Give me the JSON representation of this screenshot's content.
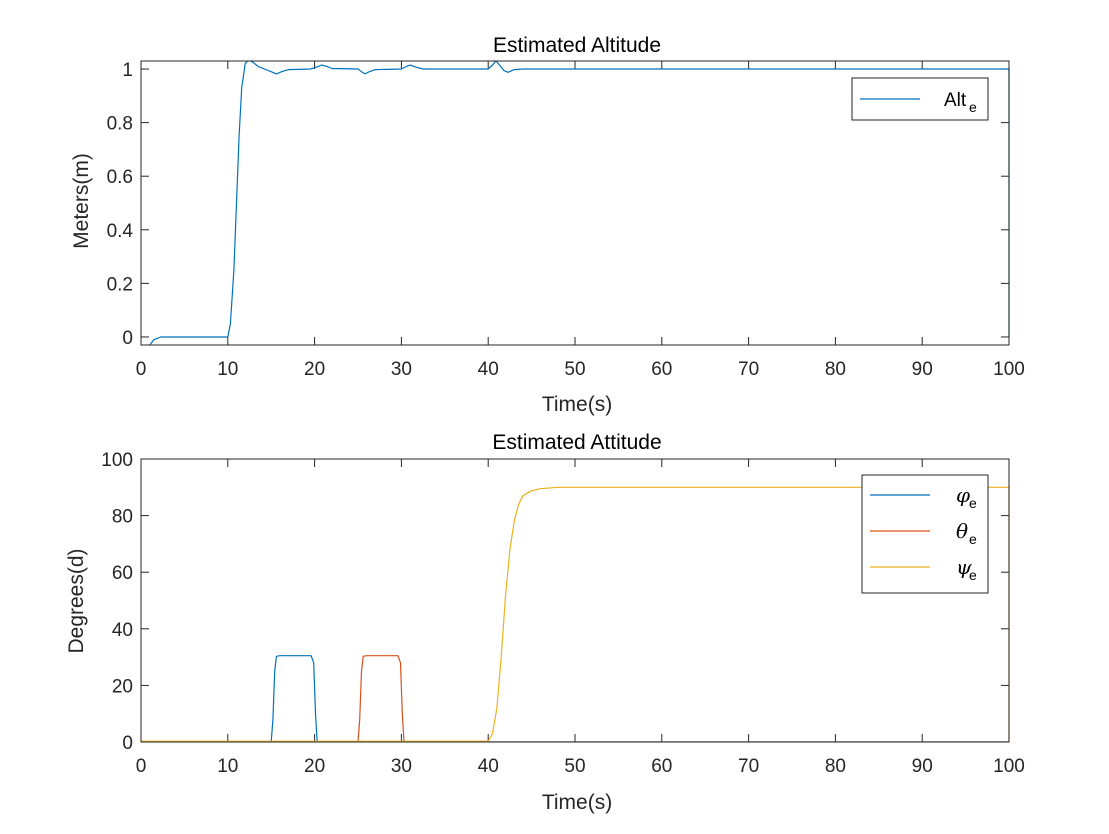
{
  "chart_data": [
    {
      "type": "line",
      "title": "Estimated Altitude",
      "xlabel": "Time(s)",
      "ylabel": "Meters(m)",
      "xlim": [
        0,
        100
      ],
      "ylim": [
        -0.03,
        1.03
      ],
      "xticks": [
        0,
        10,
        20,
        30,
        40,
        50,
        60,
        70,
        80,
        90,
        100
      ],
      "yticks": [
        0,
        0.2,
        0.4,
        0.6,
        0.8,
        1
      ],
      "xtick_labels": [
        "0",
        "10",
        "20",
        "30",
        "40",
        "50",
        "60",
        "70",
        "80",
        "90",
        "100"
      ],
      "ytick_labels": [
        "0",
        "0.2",
        "0.4",
        "0.6",
        "0.8",
        "1"
      ],
      "grid": false,
      "legend": {
        "position": "top-right"
      },
      "series": [
        {
          "name": "Alt",
          "name_subscript": "e",
          "color": "#0072BD",
          "points": [
            [
              0,
              -0.03
            ],
            [
              0.5,
              -0.035
            ],
            [
              1,
              -0.03
            ],
            [
              1.5,
              -0.01
            ],
            [
              2.3,
              0
            ],
            [
              10,
              0
            ],
            [
              10.3,
              0.05
            ],
            [
              10.7,
              0.25
            ],
            [
              11,
              0.5
            ],
            [
              11.3,
              0.75
            ],
            [
              11.6,
              0.93
            ],
            [
              12,
              1.02
            ],
            [
              12.4,
              1.035
            ],
            [
              12.9,
              1.025
            ],
            [
              13.5,
              1.01
            ],
            [
              14.2,
              1.0
            ],
            [
              15,
              0.99
            ],
            [
              15.6,
              0.982
            ],
            [
              16.2,
              0.99
            ],
            [
              17,
              0.998
            ],
            [
              19.5,
              1.0
            ],
            [
              20.3,
              1.008
            ],
            [
              20.8,
              1.015
            ],
            [
              21.4,
              1.01
            ],
            [
              22,
              1.002
            ],
            [
              25,
              1.0
            ],
            [
              25.4,
              0.99
            ],
            [
              25.8,
              0.982
            ],
            [
              26.3,
              0.99
            ],
            [
              27,
              0.998
            ],
            [
              30,
              1.0
            ],
            [
              30.6,
              1.01
            ],
            [
              31,
              1.015
            ],
            [
              31.6,
              1.008
            ],
            [
              32.5,
              1.0
            ],
            [
              40,
              1.0
            ],
            [
              40.5,
              1.015
            ],
            [
              40.9,
              1.03
            ],
            [
              41.3,
              1.015
            ],
            [
              41.8,
              0.995
            ],
            [
              42.3,
              0.988
            ],
            [
              43,
              0.998
            ],
            [
              44,
              1.0
            ],
            [
              100,
              1.0
            ],
            [
              100,
              0.0
            ]
          ]
        }
      ]
    },
    {
      "type": "line",
      "title": "Estimated Attitude",
      "xlabel": "Time(s)",
      "ylabel": "Degrees(d)",
      "xlim": [
        0,
        100
      ],
      "ylim": [
        0,
        100
      ],
      "xticks": [
        0,
        10,
        20,
        30,
        40,
        50,
        60,
        70,
        80,
        90,
        100
      ],
      "yticks": [
        0,
        20,
        40,
        60,
        80,
        100
      ],
      "xtick_labels": [
        "0",
        "10",
        "20",
        "30",
        "40",
        "50",
        "60",
        "70",
        "80",
        "90",
        "100"
      ],
      "ytick_labels": [
        "0",
        "20",
        "40",
        "60",
        "80",
        "100"
      ],
      "grid": false,
      "legend": {
        "position": "top-right"
      },
      "series": [
        {
          "name": "φ",
          "name_subscript": "e",
          "color": "#0072BD",
          "points": [
            [
              0,
              0
            ],
            [
              15,
              0
            ],
            [
              15.2,
              8
            ],
            [
              15.4,
              25
            ],
            [
              15.6,
              30.3
            ],
            [
              16,
              30.5
            ],
            [
              19.6,
              30.5
            ],
            [
              19.9,
              28
            ],
            [
              20.1,
              10
            ],
            [
              20.3,
              0
            ],
            [
              100,
              0
            ]
          ]
        },
        {
          "name": "θ",
          "name_subscript": "e",
          "color": "#D95319",
          "points": [
            [
              0,
              0
            ],
            [
              25,
              0
            ],
            [
              25.2,
              8
            ],
            [
              25.4,
              25
            ],
            [
              25.6,
              30.3
            ],
            [
              26,
              30.5
            ],
            [
              29.6,
              30.5
            ],
            [
              29.9,
              28
            ],
            [
              30.1,
              10
            ],
            [
              30.3,
              0
            ],
            [
              100,
              0
            ]
          ]
        },
        {
          "name": "ψ",
          "name_subscript": "e",
          "color": "#EDB120",
          "points": [
            [
              0,
              0.3
            ],
            [
              40,
              0.3
            ],
            [
              40.5,
              3
            ],
            [
              41,
              12
            ],
            [
              41.5,
              30
            ],
            [
              42,
              52
            ],
            [
              42.5,
              68
            ],
            [
              43,
              78
            ],
            [
              43.5,
              84
            ],
            [
              44,
              87
            ],
            [
              45,
              88.8
            ],
            [
              46,
              89.5
            ],
            [
              48,
              90
            ],
            [
              100,
              90
            ],
            [
              100,
              0
            ]
          ]
        }
      ]
    }
  ]
}
